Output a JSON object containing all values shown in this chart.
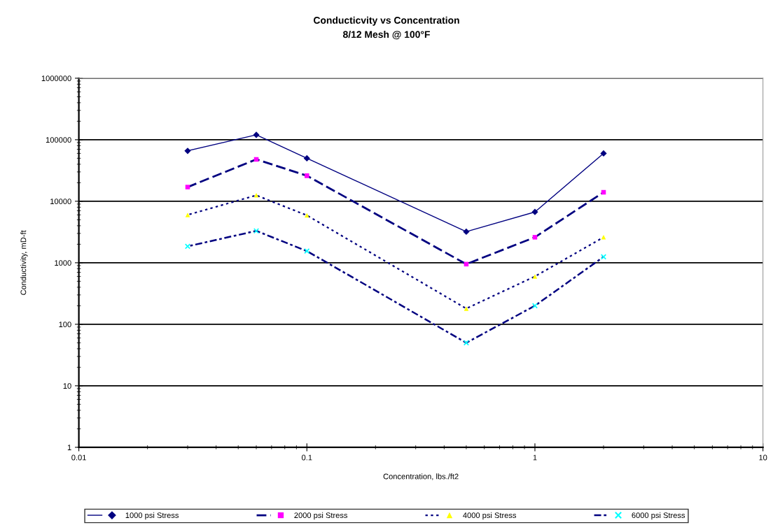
{
  "chart_data": {
    "type": "line",
    "title": "Conducticvity vs Concentration",
    "subtitle": "8/12 Mesh @ 100°F",
    "xlabel": "Concentration, lbs./ft2",
    "ylabel": "Conductivity, mD-ft",
    "log": "xy",
    "xlim": [
      0.01,
      10
    ],
    "xticks": [
      0.01,
      0.1,
      1,
      10
    ],
    "ylim": [
      1,
      1000000
    ],
    "yticks": [
      1,
      10,
      100,
      1000,
      10000,
      100000,
      1000000
    ],
    "grid": "y",
    "legend": "bottom",
    "x": [
      0.03,
      0.06,
      0.1,
      0.5,
      1,
      2
    ],
    "series": [
      {
        "name": "1000 psi Stress",
        "color": "#000080",
        "colors": [
          "#000080",
          "#000080",
          "#000080",
          "#000080",
          "#000080",
          "#000080"
        ],
        "marker": "diamond",
        "line_style": "solid",
        "values": [
          66000,
          120000,
          50000,
          3200,
          6700,
          60000
        ]
      },
      {
        "name": "2000 psi Stress",
        "color": "#000080",
        "colors": [
          "#ff00ff",
          "#ff00ff",
          "#ff00ff",
          "#ff00ff",
          "#ff00ff",
          "#ff00ff"
        ],
        "marker": "square",
        "line_style": "dashed",
        "values": [
          17000,
          48000,
          26000,
          950,
          2600,
          14000
        ]
      },
      {
        "name": "4000 psi Stress",
        "color": "#000080",
        "colors": [
          "#ffff00",
          "#ffff00",
          "#ffff00",
          "#ffff00",
          "#ffff00",
          "#ffff00"
        ],
        "marker": "triangle",
        "line_style": "dotted",
        "values": [
          6000,
          12500,
          5900,
          180,
          600,
          2600
        ]
      },
      {
        "name": "6000 psi Stress",
        "color": "#000080",
        "colors": [
          "#00ffff",
          "#00ffff",
          "#00ffff",
          "#00ffff",
          "#00ffff",
          "#00ffff"
        ],
        "marker": "cross",
        "line_style": "dashdot",
        "values": [
          1850,
          3300,
          1550,
          50,
          200,
          1250
        ]
      }
    ]
  }
}
